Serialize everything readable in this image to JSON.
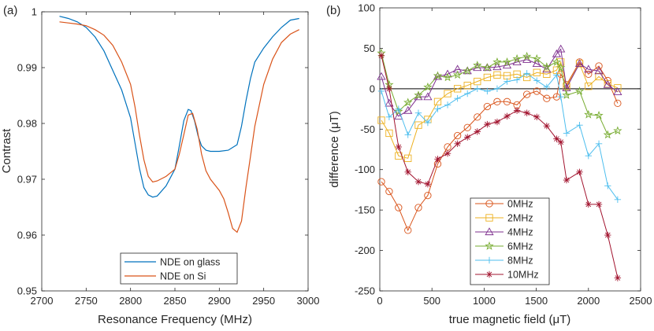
{
  "chart_data": [
    {
      "type": "line",
      "panel_label": "(a)",
      "xlabel": "Resonance Frequency (MHz)",
      "ylabel": "Contrast",
      "xlim": [
        2700,
        3000
      ],
      "ylim": [
        0.95,
        1.0
      ],
      "xticks": [
        2700,
        2750,
        2800,
        2850,
        2900,
        2950,
        3000
      ],
      "yticks": [
        0.95,
        0.96,
        0.97,
        0.98,
        0.99,
        1
      ],
      "ytick_labels": [
        "0.95",
        "0.96",
        "0.97",
        "0.98",
        "0.99",
        "1"
      ],
      "grid": false,
      "legend_position": "bottom-center",
      "series": [
        {
          "name": "NDE on glass",
          "color": "#0072BD",
          "x": [
            2720,
            2730,
            2740,
            2750,
            2760,
            2770,
            2780,
            2790,
            2800,
            2805,
            2810,
            2815,
            2820,
            2825,
            2830,
            2840,
            2850,
            2855,
            2860,
            2865,
            2868,
            2872,
            2876,
            2880,
            2885,
            2890,
            2900,
            2910,
            2920,
            2925,
            2930,
            2935,
            2940,
            2950,
            2960,
            2970,
            2980,
            2990
          ],
          "y": [
            0.9992,
            0.9988,
            0.9982,
            0.9972,
            0.9955,
            0.993,
            0.9895,
            0.986,
            0.981,
            0.9765,
            0.972,
            0.9685,
            0.9672,
            0.9668,
            0.967,
            0.9688,
            0.9718,
            0.976,
            0.9805,
            0.9825,
            0.9823,
            0.9805,
            0.9778,
            0.976,
            0.9752,
            0.975,
            0.975,
            0.9752,
            0.9762,
            0.9795,
            0.984,
            0.988,
            0.991,
            0.9935,
            0.9955,
            0.9972,
            0.9985,
            0.9988
          ]
        },
        {
          "name": "NDE on Si",
          "color": "#D95319",
          "x": [
            2720,
            2730,
            2740,
            2750,
            2760,
            2770,
            2780,
            2790,
            2800,
            2805,
            2810,
            2815,
            2820,
            2825,
            2830,
            2840,
            2850,
            2855,
            2860,
            2865,
            2870,
            2875,
            2880,
            2885,
            2890,
            2895,
            2900,
            2905,
            2910,
            2915,
            2920,
            2925,
            2930,
            2935,
            2940,
            2950,
            2960,
            2970,
            2980,
            2990
          ],
          "y": [
            0.9982,
            0.998,
            0.9978,
            0.9975,
            0.9968,
            0.9958,
            0.994,
            0.991,
            0.987,
            0.983,
            0.978,
            0.9735,
            0.9705,
            0.9695,
            0.9697,
            0.9705,
            0.9718,
            0.9745,
            0.978,
            0.9815,
            0.9818,
            0.979,
            0.9745,
            0.9715,
            0.97,
            0.969,
            0.968,
            0.9665,
            0.964,
            0.9612,
            0.9605,
            0.9625,
            0.9685,
            0.974,
            0.9795,
            0.987,
            0.9915,
            0.9945,
            0.996,
            0.9968
          ]
        }
      ]
    },
    {
      "type": "line",
      "panel_label": "(b)",
      "xlabel": "true magnetic field (μT)",
      "ylabel": "difference (μT)",
      "xlim": [
        0,
        2500
      ],
      "ylim": [
        -250,
        100
      ],
      "xticks": [
        0,
        500,
        1000,
        1500,
        2000,
        2500
      ],
      "yticks": [
        -250,
        -200,
        -150,
        -100,
        -50,
        0,
        50,
        100
      ],
      "zero_line": true,
      "grid": false,
      "legend_position": "bottom-center",
      "x": [
        15,
        90,
        180,
        270,
        370,
        460,
        555,
        650,
        745,
        840,
        935,
        1030,
        1125,
        1220,
        1315,
        1410,
        1505,
        1600,
        1695,
        1735,
        1790,
        1915,
        2000,
        2100,
        2185,
        2280
      ],
      "series": [
        {
          "name": "0MHz",
          "color": "#D95319",
          "marker": "circle",
          "values": [
            -115,
            -127,
            -147,
            -175,
            -147,
            -132,
            -93,
            -72,
            -58,
            -48,
            -35,
            -22,
            -16,
            -16,
            -20,
            -7,
            -3,
            -12,
            -10,
            18,
            5,
            33,
            18,
            28,
            10,
            -18
          ]
        },
        {
          "name": "2MHz",
          "color": "#EDB120",
          "marker": "square",
          "values": [
            -39,
            -55,
            -83,
            -86,
            -45,
            -38,
            -16,
            -6,
            0,
            4,
            9,
            14,
            17,
            16,
            18,
            14,
            20,
            18,
            23,
            33,
            3,
            31,
            3,
            15,
            6,
            1
          ]
        },
        {
          "name": "4MHz",
          "color": "#7E2F8E",
          "marker": "triangle",
          "values": [
            15,
            -18,
            -34,
            -27,
            -10,
            -10,
            15,
            18,
            24,
            22,
            26,
            26,
            27,
            29,
            33,
            36,
            31,
            24,
            43,
            49,
            1,
            31,
            24,
            22,
            5,
            -4
          ]
        },
        {
          "name": "6MHz",
          "color": "#77AC30",
          "marker": "star",
          "values": [
            44,
            5,
            -28,
            -17,
            -8,
            2,
            16,
            14,
            17,
            22,
            29,
            26,
            33,
            33,
            37,
            40,
            37,
            27,
            33,
            26,
            -8,
            -3,
            -32,
            -33,
            -57,
            -52
          ]
        },
        {
          "name": "8MHz",
          "color": "#4DBEEE",
          "marker": "plus",
          "values": [
            -3,
            -35,
            -25,
            -57,
            -30,
            -42,
            -25,
            -20,
            -12,
            -6,
            0,
            -3,
            0,
            9,
            11,
            19,
            10,
            2,
            17,
            -10,
            -55,
            -45,
            -83,
            -68,
            -120,
            -137
          ]
        },
        {
          "name": "10MHz",
          "color": "#A2142F",
          "marker": "asterisk",
          "values": [
            41,
            0,
            -72,
            -103,
            -115,
            -118,
            -87,
            -80,
            -68,
            -60,
            -53,
            -44,
            -41,
            -34,
            -27,
            -30,
            -35,
            -46,
            -62,
            -66,
            -113,
            -103,
            -143,
            -143,
            -181,
            -234
          ]
        }
      ]
    }
  ]
}
